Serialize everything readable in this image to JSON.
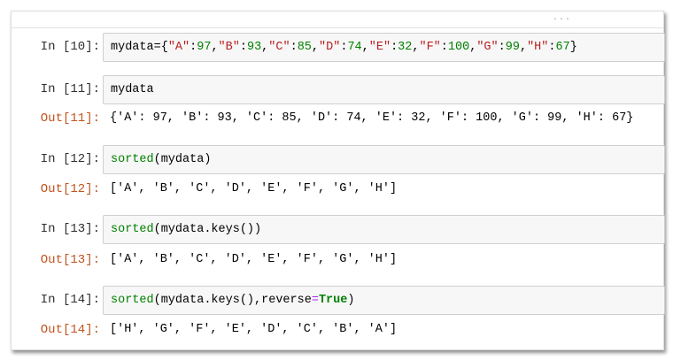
{
  "toolbar": {
    "overflow": "..."
  },
  "cells": [
    {
      "in_prompt": "In  [10]:",
      "code": [
        [
          "mydata={",
          "p"
        ],
        [
          "\"A\"",
          "str"
        ],
        [
          ":",
          "p"
        ],
        [
          "97",
          "num"
        ],
        [
          ",",
          "p"
        ],
        [
          "\"B\"",
          "str"
        ],
        [
          ":",
          "p"
        ],
        [
          "93",
          "num"
        ],
        [
          ",",
          "p"
        ],
        [
          "\"C\"",
          "str"
        ],
        [
          ":",
          "p"
        ],
        [
          "85",
          "num"
        ],
        [
          ",",
          "p"
        ],
        [
          "\"D\"",
          "str"
        ],
        [
          ":",
          "p"
        ],
        [
          "74",
          "num"
        ],
        [
          ",",
          "p"
        ],
        [
          "\"E\"",
          "str"
        ],
        [
          ":",
          "p"
        ],
        [
          "32",
          "num"
        ],
        [
          ",",
          "p"
        ],
        [
          "\"F\"",
          "str"
        ],
        [
          ":",
          "p"
        ],
        [
          "100",
          "num"
        ],
        [
          ",",
          "p"
        ],
        [
          "\"G\"",
          "str"
        ],
        [
          ":",
          "p"
        ],
        [
          "99",
          "num"
        ],
        [
          ",",
          "p"
        ],
        [
          "\"H\"",
          "str"
        ],
        [
          ":",
          "p"
        ],
        [
          "67",
          "num"
        ],
        [
          "}",
          "p"
        ]
      ],
      "out_prompt": "",
      "output": ""
    },
    {
      "in_prompt": "In  [11]:",
      "code": [
        [
          "mydata",
          "p"
        ]
      ],
      "out_prompt": "Out[11]:",
      "output": "{'A': 97, 'B': 93, 'C': 85, 'D': 74, 'E': 32, 'F': 100, 'G': 99, 'H': 67}"
    },
    {
      "in_prompt": "In  [12]:",
      "code": [
        [
          "sorted",
          "bi"
        ],
        [
          "(mydata)",
          "p"
        ]
      ],
      "out_prompt": "Out[12]:",
      "output": "['A', 'B', 'C', 'D', 'E', 'F', 'G', 'H']"
    },
    {
      "in_prompt": "In  [13]:",
      "code": [
        [
          "sorted",
          "bi"
        ],
        [
          "(mydata.keys())",
          "p"
        ]
      ],
      "out_prompt": "Out[13]:",
      "output": "['A', 'B', 'C', 'D', 'E', 'F', 'G', 'H']"
    },
    {
      "in_prompt": "In  [14]:",
      "code": [
        [
          "sorted",
          "bi"
        ],
        [
          "(mydata.keys(),reverse",
          "p"
        ],
        [
          "=",
          "op"
        ],
        [
          "True",
          "kw"
        ],
        [
          ")",
          "p"
        ]
      ],
      "out_prompt": "Out[14]:",
      "output": "['H', 'G', 'F', 'E', 'D', 'C', 'B', 'A']"
    }
  ],
  "colors": {
    "string": "#ba2121",
    "number": "#008000",
    "builtin": "#008000",
    "out_prompt": "#c0541f"
  }
}
